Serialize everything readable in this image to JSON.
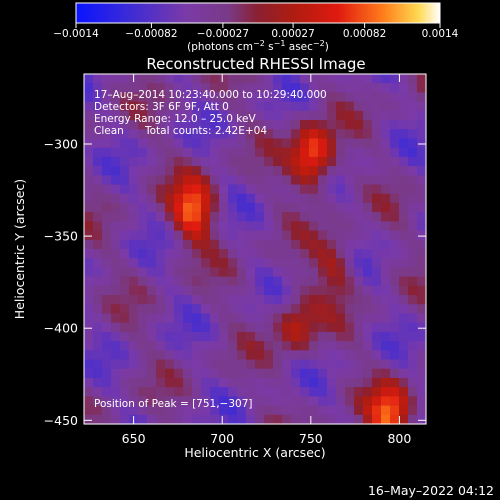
{
  "chart_data": {
    "type": "heatmap",
    "title": "Reconstructed RHESSI Image",
    "xlabel": "Heliocentric X (arcsec)",
    "ylabel": "Heliocentric Y (arcsec)",
    "xlim": [
      622,
      815
    ],
    "ylim": [
      -452,
      -262
    ],
    "x_ticks": [
      650,
      700,
      750,
      800
    ],
    "y_ticks": [
      -450,
      -400,
      -350,
      -300
    ],
    "x_tick_labels": [
      "650",
      "700",
      "750",
      "800"
    ],
    "y_tick_labels": [
      "−450",
      "−400",
      "−350",
      "−300"
    ],
    "colorbar": {
      "range": [
        -0.0014,
        0.0014
      ],
      "tick_values": [
        -0.0014,
        -0.00082,
        -0.00027,
        0.00027,
        0.00082,
        0.0014
      ],
      "tick_labels": [
        "−0.0014",
        "−0.00082",
        "−0.00027",
        "0.00027",
        "0.00082",
        "0.0014"
      ],
      "units_prefix": "(photons cm",
      "units_exp1": "−2",
      "units_mid1": " s",
      "units_exp2": "−1",
      "units_mid2": " asec",
      "units_exp3": "−2",
      "units_suffix": ")"
    },
    "annotations": {
      "time_range": "17–Aug–2014 10:23:40.000 to 10:29:40.000",
      "detectors": "Detectors: 3F 6F 9F, Att 0",
      "energy": "Energy Range: 12.0 – 25.0 keV",
      "clean_label": "Clean",
      "total_counts": "Total counts: 2.42E+04",
      "peak": "Position of Peak = [751,−307]"
    },
    "sources": [
      {
        "x": 751,
        "y": -307,
        "value": 0.0014
      },
      {
        "x": 684,
        "y": -336,
        "value": 0.00125
      },
      {
        "x": 795,
        "y": -447,
        "value": 0.0012
      },
      {
        "x": 742,
        "y": -398,
        "value": 0.00075
      },
      {
        "x": 764,
        "y": -366,
        "value": 0.00062
      }
    ],
    "footer_date": "16–May–2022 04:12"
  }
}
